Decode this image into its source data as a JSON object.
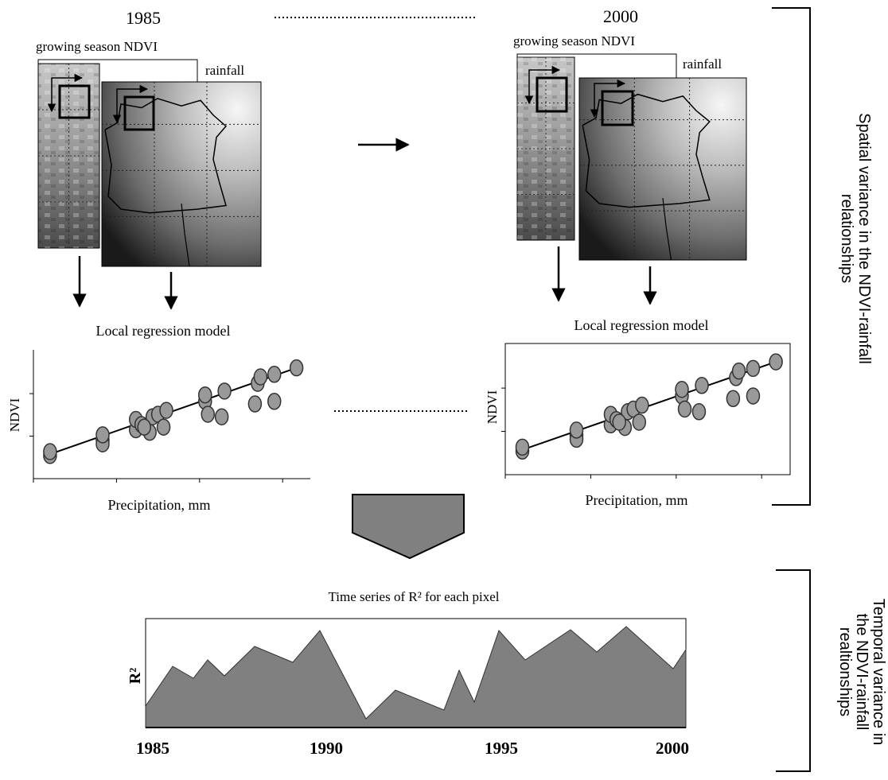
{
  "panels": [
    {
      "year": "1985",
      "ndvi_label": "growing season NDVI",
      "rainfall_label": "rainfall",
      "model_title": "Local regression model",
      "y_label": "NDVI",
      "x_label": "Precipitation, mm"
    },
    {
      "year": "2000",
      "ndvi_label": "growing season NDVI",
      "rainfall_label": "rainfall",
      "model_title": "Local regression model",
      "y_label": "NDVI",
      "x_label": "Precipitation, mm"
    }
  ],
  "time_series": {
    "title": "Time series of R² for each pixel",
    "y_label": "R²",
    "x_labels": [
      "1985",
      "1990",
      "1995",
      "2000"
    ]
  },
  "brackets": {
    "spatial": [
      "Spatial variance in the NDVI-rainfall",
      "relationships"
    ],
    "temporal": [
      "Temporal variance in",
      "the NDVI-rainfall",
      "realtionships"
    ]
  }
}
